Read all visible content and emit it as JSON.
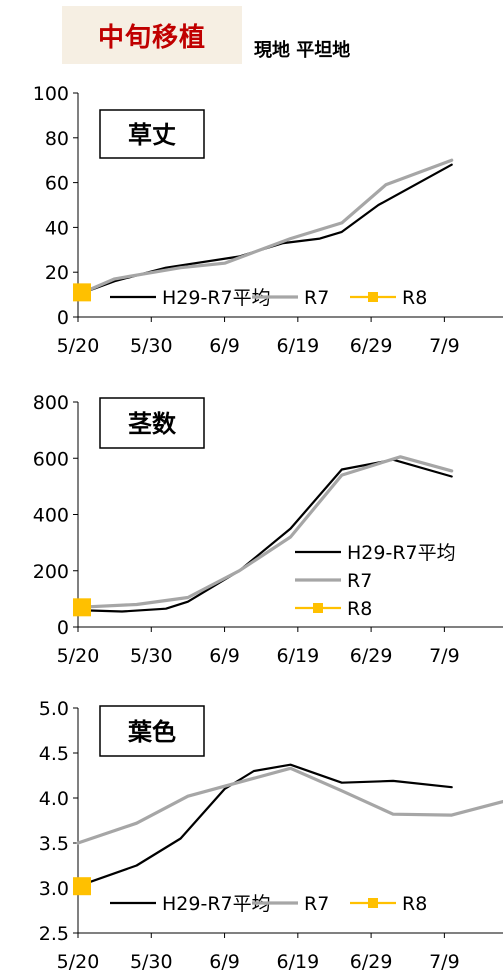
{
  "header": {
    "title": "中旬移植",
    "subtitle": "現地 平坦地"
  },
  "colors": {
    "avg": "#000000",
    "r7": "#a6a6a6",
    "r8": "#ffc000",
    "title_red": "#c00000"
  },
  "x_tick_labels": [
    "5/20",
    "5/30",
    "6/9",
    "6/19",
    "6/29",
    "7/9"
  ],
  "chart_data": [
    {
      "type": "line",
      "title": "草丈",
      "legend_position": "bottom-inside-horizontal",
      "x_ticks_days": [
        0,
        10,
        20,
        30,
        40,
        50
      ],
      "ylim": [
        0,
        100
      ],
      "yticks": [
        0,
        20,
        40,
        60,
        80,
        100
      ],
      "ytick_labels": [
        "0",
        "20",
        "40",
        "60",
        "80",
        "100"
      ],
      "xlim_days": [
        0,
        58
      ],
      "series": [
        {
          "name": "H29-R7平均",
          "color_key": "avg",
          "points": [
            [
              0,
              10
            ],
            [
              5,
              16
            ],
            [
              12,
              22
            ],
            [
              22,
              27
            ],
            [
              28,
              33
            ],
            [
              33,
              35
            ],
            [
              36,
              38
            ],
            [
              41,
              50
            ],
            [
              51,
              68
            ]
          ]
        },
        {
          "name": "R7",
          "color_key": "r7",
          "points": [
            [
              0,
              10
            ],
            [
              5,
              17
            ],
            [
              14,
              22
            ],
            [
              20,
              24
            ],
            [
              29,
              35
            ],
            [
              36,
              42
            ],
            [
              42,
              59
            ],
            [
              51,
              70
            ]
          ]
        },
        {
          "name": "R8",
          "color_key": "r8",
          "marker": "square",
          "points": [
            [
              0,
              11
            ]
          ]
        }
      ]
    },
    {
      "type": "line",
      "title": "茎数",
      "legend_position": "right-inside-vertical",
      "x_ticks_days": [
        0,
        10,
        20,
        30,
        40,
        50
      ],
      "ylim": [
        0,
        800
      ],
      "yticks": [
        0,
        200,
        400,
        600,
        800
      ],
      "ytick_labels": [
        "0",
        "200",
        "400",
        "600",
        "800"
      ],
      "xlim_days": [
        0,
        58
      ],
      "series": [
        {
          "name": "H29-R7平均",
          "color_key": "avg",
          "points": [
            [
              0,
              60
            ],
            [
              6,
              55
            ],
            [
              12,
              65
            ],
            [
              15,
              90
            ],
            [
              22,
              200
            ],
            [
              29,
              350
            ],
            [
              36,
              560
            ],
            [
              43,
              595
            ],
            [
              51,
              535
            ]
          ]
        },
        {
          "name": "R7",
          "color_key": "r7",
          "points": [
            [
              0,
              70
            ],
            [
              8,
              80
            ],
            [
              15,
              105
            ],
            [
              22,
              200
            ],
            [
              29,
              320
            ],
            [
              36,
              540
            ],
            [
              44,
              605
            ],
            [
              51,
              555
            ]
          ]
        },
        {
          "name": "R8",
          "color_key": "r8",
          "marker": "square",
          "points": [
            [
              0,
              70
            ]
          ]
        }
      ]
    },
    {
      "type": "line",
      "title": "葉色",
      "legend_position": "bottom-inside-horizontal",
      "x_ticks_days": [
        0,
        10,
        20,
        30,
        40,
        50
      ],
      "ylim": [
        2.5,
        5.0
      ],
      "yticks": [
        2.5,
        3.0,
        3.5,
        4.0,
        4.5,
        5.0
      ],
      "ytick_labels": [
        "2.5",
        "3.0",
        "3.5",
        "4.0",
        "4.5",
        "5.0"
      ],
      "xlim_days": [
        0,
        58
      ],
      "series": [
        {
          "name": "H29-R7平均",
          "color_key": "avg",
          "points": [
            [
              0,
              3.02
            ],
            [
              8,
              3.25
            ],
            [
              14,
              3.55
            ],
            [
              20,
              4.1
            ],
            [
              24,
              4.3
            ],
            [
              29,
              4.37
            ],
            [
              36,
              4.17
            ],
            [
              43,
              4.19
            ],
            [
              51,
              4.12
            ]
          ]
        },
        {
          "name": "R7",
          "color_key": "r7",
          "points": [
            [
              0,
              3.5
            ],
            [
              8,
              3.72
            ],
            [
              15,
              4.02
            ],
            [
              29,
              4.33
            ],
            [
              36,
              4.08
            ],
            [
              43,
              3.82
            ],
            [
              51,
              3.81
            ],
            [
              58,
              3.96
            ]
          ]
        },
        {
          "name": "R8",
          "color_key": "r8",
          "marker": "square",
          "points": [
            [
              0,
              3.02
            ]
          ]
        }
      ]
    }
  ]
}
